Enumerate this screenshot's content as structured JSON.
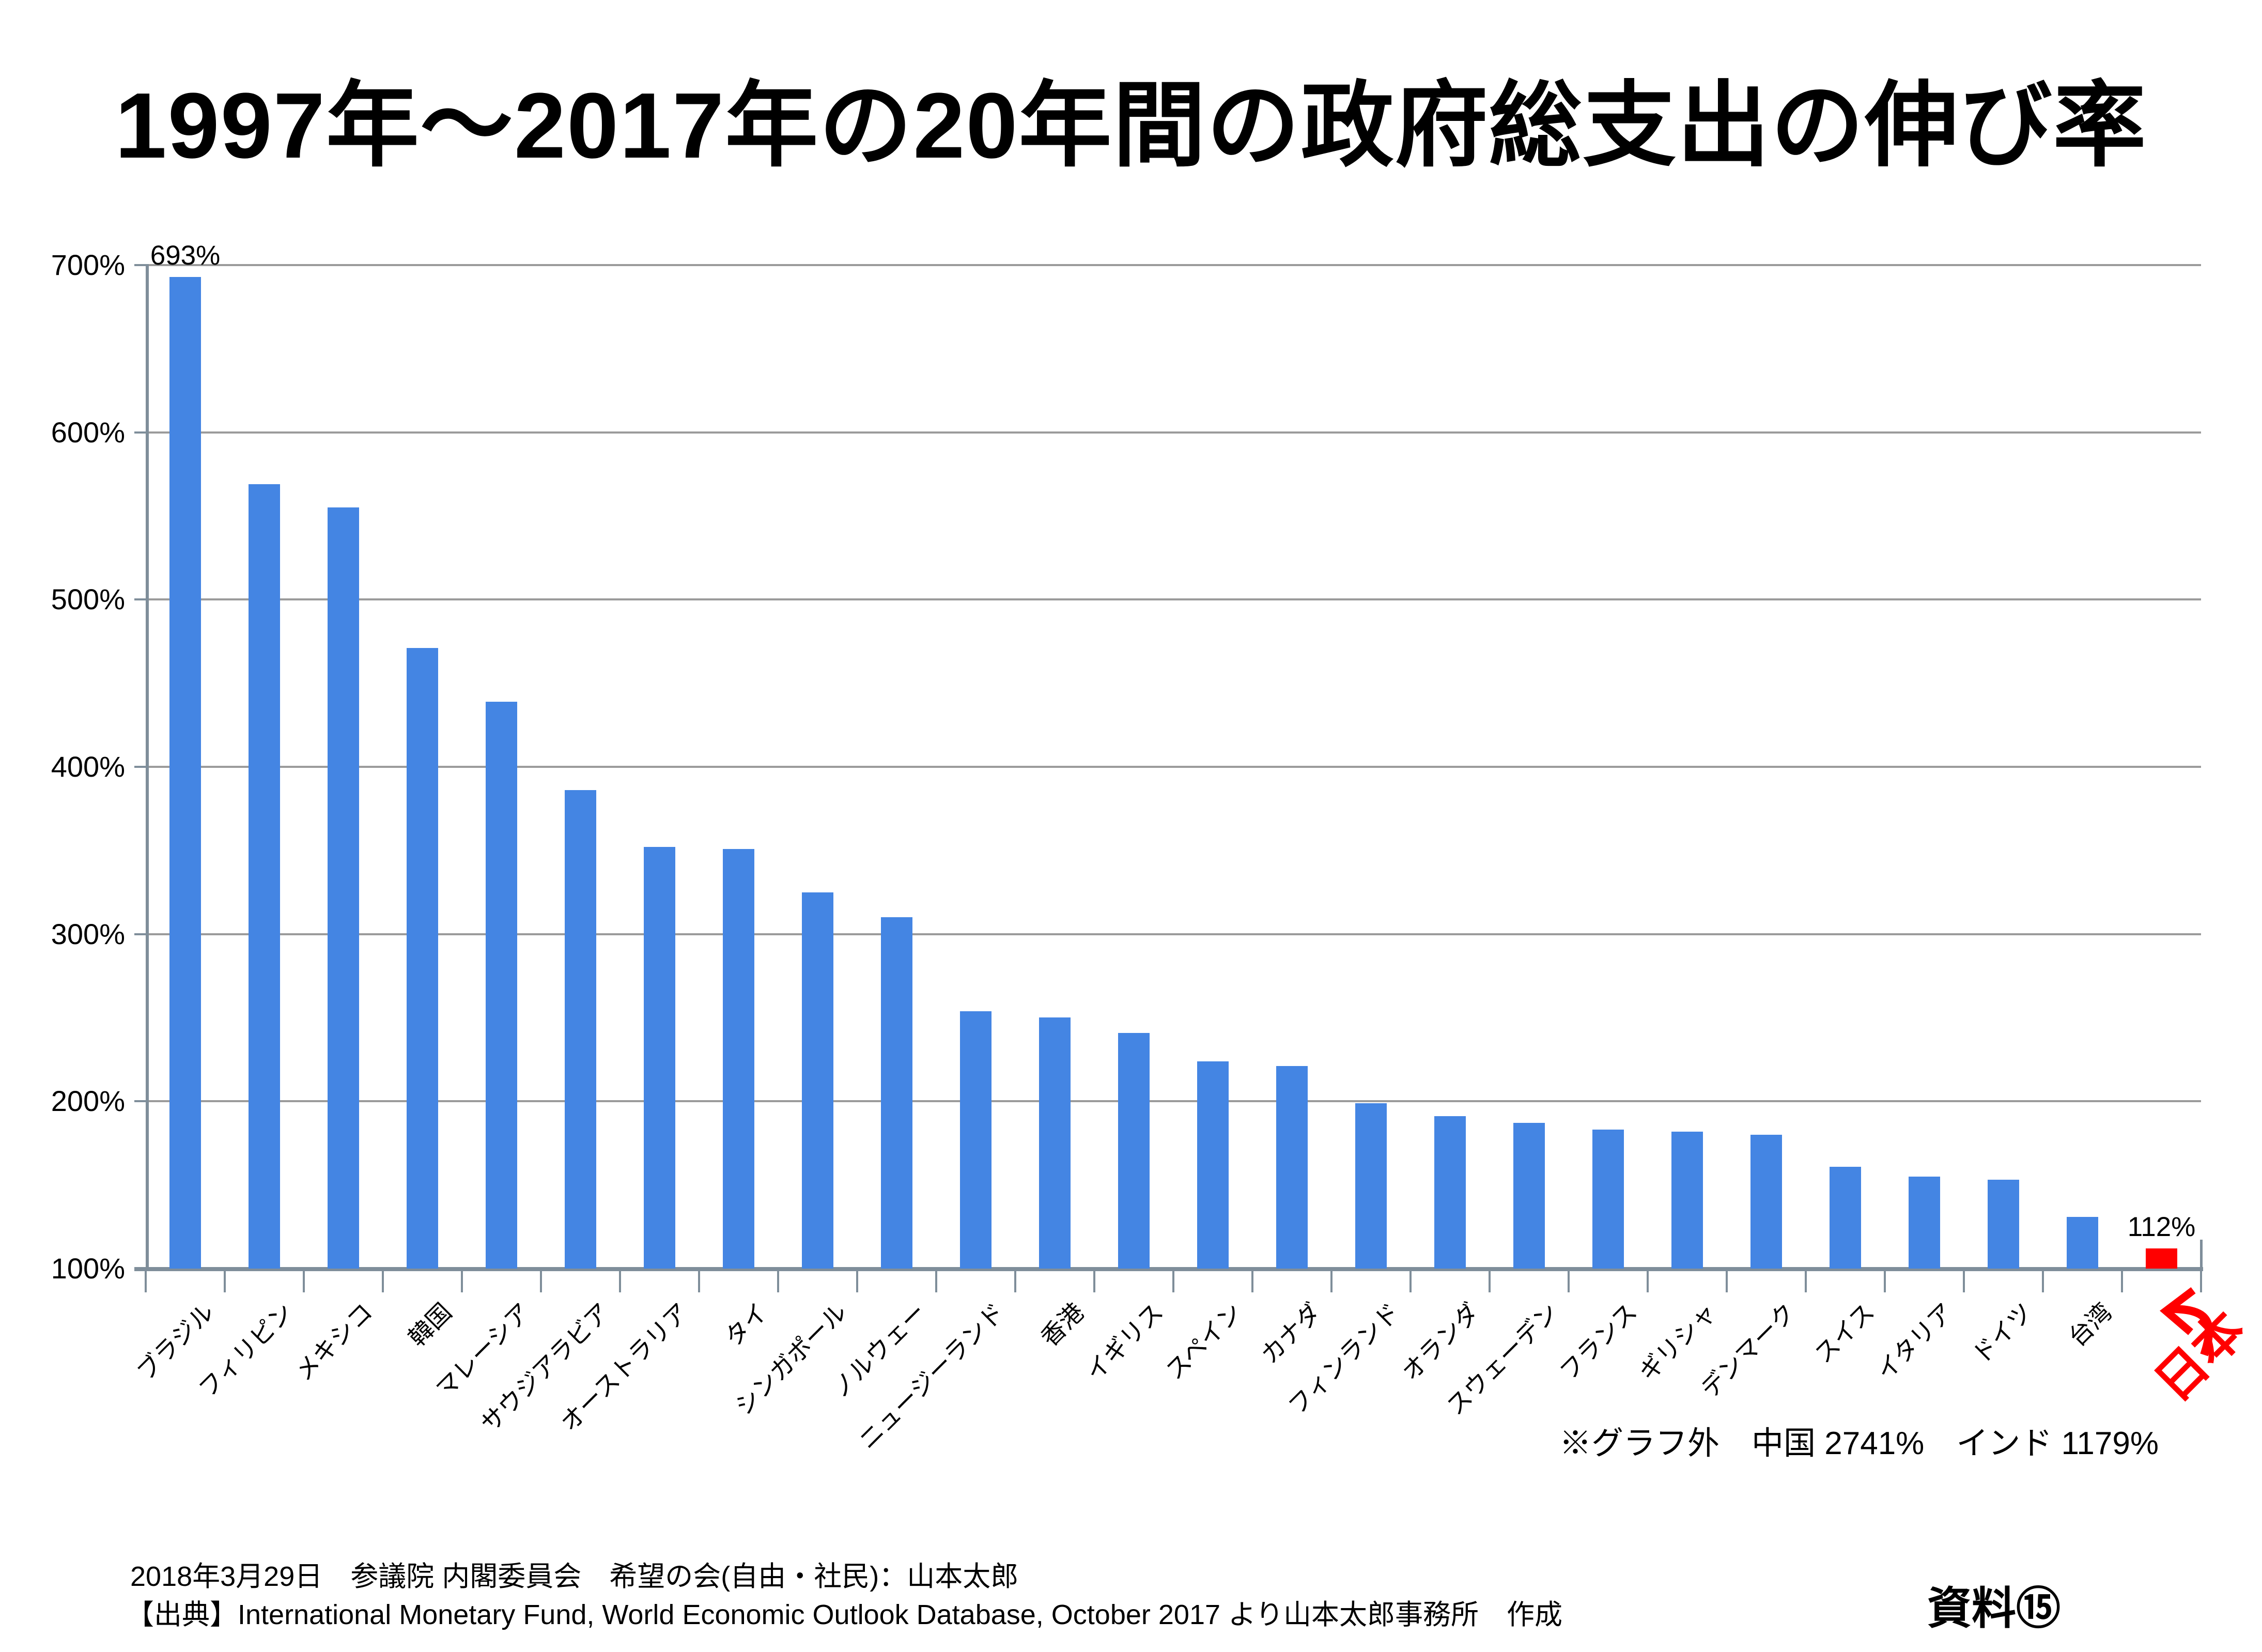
{
  "title": "1997年～2017年の20年間の政府総支出の伸び率",
  "chart_data": {
    "type": "bar",
    "title": "1997年～2017年の20年間の政府総支出の伸び率",
    "categories": [
      "ブラジル",
      "フィリピン",
      "メキシコ",
      "韓国",
      "マレーシア",
      "サウジアラビア",
      "オーストラリア",
      "タイ",
      "シンガポール",
      "ノルウェー",
      "ニュージーランド",
      "香港",
      "イギリス",
      "スペイン",
      "カナダ",
      "フィンランド",
      "オランダ",
      "スウェーデン",
      "フランス",
      "ギリシャ",
      "デンマーク",
      "スイス",
      "イタリア",
      "ドイツ",
      "台湾",
      "日本"
    ],
    "values": [
      693,
      569,
      555,
      471,
      439,
      386,
      352,
      351,
      325,
      310,
      254,
      250,
      241,
      224,
      221,
      199,
      191,
      187,
      183,
      182,
      180,
      161,
      155,
      153,
      131,
      112
    ],
    "ylim": [
      100,
      700
    ],
    "ytick_step": 100,
    "ytick_suffix": "%",
    "grid": true,
    "legend": false,
    "bar_color": "#4485e3",
    "grid_color": "#9b9b9b",
    "axis_color": "#7f8e9a",
    "highlight": {
      "index": 25,
      "color": "#ff0000",
      "label_color": "#ff0000"
    },
    "value_labels": [
      {
        "index": 0,
        "text": "693%"
      },
      {
        "index": 25,
        "text": "112%"
      }
    ]
  },
  "note": "※グラフ外　中国 2741%　インド 1179%",
  "footer": {
    "line1": "2018年3月29日　参議院 内閣委員会　希望の会(自由・社民)：山本太郎",
    "line2": "【出典】International Monetary Fund, World Economic Outlook Database, October 2017 より山本太郎事務所　作成",
    "doc_label": "資料⑮"
  }
}
